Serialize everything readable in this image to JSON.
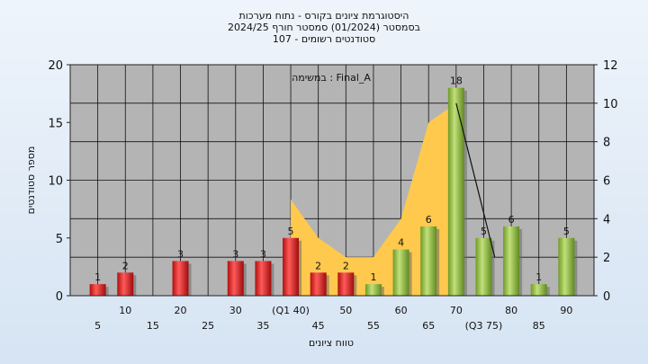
{
  "title_lines": [
    "היסטוגרמת ציונים בקורס - נתוח מערכות",
    "בסמסטר (01/2024) סמסטר חורף 2024/25",
    "107 - סטודנטים רשומים"
  ],
  "chart_data": {
    "type": "bar",
    "title": "היסטוגרמת ציונים בקורס - נתוח מערכות",
    "annotation": "במשימה : Final_A",
    "xlabel": "טווח ציונים",
    "ylabel": "מספר סטודנטים",
    "ylim": [
      0,
      20
    ],
    "y_ticks": [
      0,
      5,
      10,
      15,
      20
    ],
    "y2lim": [
      0,
      12
    ],
    "y2_ticks": [
      0,
      2,
      4,
      6,
      8,
      10,
      12
    ],
    "grid": true,
    "x_tick_labels_upper": [
      {
        "x": 10,
        "label": "10"
      },
      {
        "x": 20,
        "label": "20"
      },
      {
        "x": 30,
        "label": "30"
      },
      {
        "x": 40,
        "label": "(Q1 40)"
      },
      {
        "x": 50,
        "label": "50"
      },
      {
        "x": 60,
        "label": "60"
      },
      {
        "x": 70,
        "label": "70"
      },
      {
        "x": 80,
        "label": "80"
      },
      {
        "x": 90,
        "label": "90"
      }
    ],
    "x_tick_labels_lower": [
      {
        "x": 5,
        "label": "5"
      },
      {
        "x": 15,
        "label": "15"
      },
      {
        "x": 25,
        "label": "25"
      },
      {
        "x": 35,
        "label": "35"
      },
      {
        "x": 45,
        "label": "45"
      },
      {
        "x": 55,
        "label": "55"
      },
      {
        "x": 65,
        "label": "65"
      },
      {
        "x": 75,
        "label": "(Q3 75)"
      },
      {
        "x": 85,
        "label": "85"
      }
    ],
    "bars": [
      {
        "x": 5,
        "value": 1,
        "label": "1",
        "color": "red"
      },
      {
        "x": 10,
        "value": 2,
        "label": "2",
        "color": "red"
      },
      {
        "x": 20,
        "value": 3,
        "label": "3",
        "color": "red"
      },
      {
        "x": 30,
        "value": 3,
        "label": "3",
        "color": "red"
      },
      {
        "x": 35,
        "value": 3,
        "label": "3",
        "color": "red"
      },
      {
        "x": 40,
        "value": 5,
        "label": "5",
        "color": "red"
      },
      {
        "x": 45,
        "value": 2,
        "label": "2",
        "color": "red"
      },
      {
        "x": 50,
        "value": 2,
        "label": "2",
        "color": "red"
      },
      {
        "x": 55,
        "value": 1,
        "label": "1",
        "color": "green"
      },
      {
        "x": 60,
        "value": 4,
        "label": "4",
        "color": "green"
      },
      {
        "x": 65,
        "value": 6,
        "label": "6",
        "color": "green"
      },
      {
        "x": 70,
        "value": 18,
        "label": "18",
        "color": "green"
      },
      {
        "x": 75,
        "value": 5,
        "label": "5",
        "color": "green"
      },
      {
        "x": 80,
        "value": 6,
        "label": "6",
        "color": "green"
      },
      {
        "x": 85,
        "value": 1,
        "label": "1",
        "color": "green"
      },
      {
        "x": 90,
        "value": 5,
        "label": "5",
        "color": "green"
      }
    ],
    "area_series": {
      "axis": "right",
      "x": [
        40,
        45,
        50,
        55,
        60,
        65,
        70
      ],
      "values": [
        5,
        3,
        2,
        2,
        4,
        9,
        10
      ]
    },
    "trend_line": {
      "axis": "right",
      "x": [
        70,
        77
      ],
      "values": [
        10,
        2
      ]
    },
    "colors": {
      "plot_bg": "#b4b4b4",
      "grid": "#111111",
      "area": "#ffc94d",
      "bar_red": "#e02424",
      "bar_green": "#8dbb3c"
    }
  }
}
